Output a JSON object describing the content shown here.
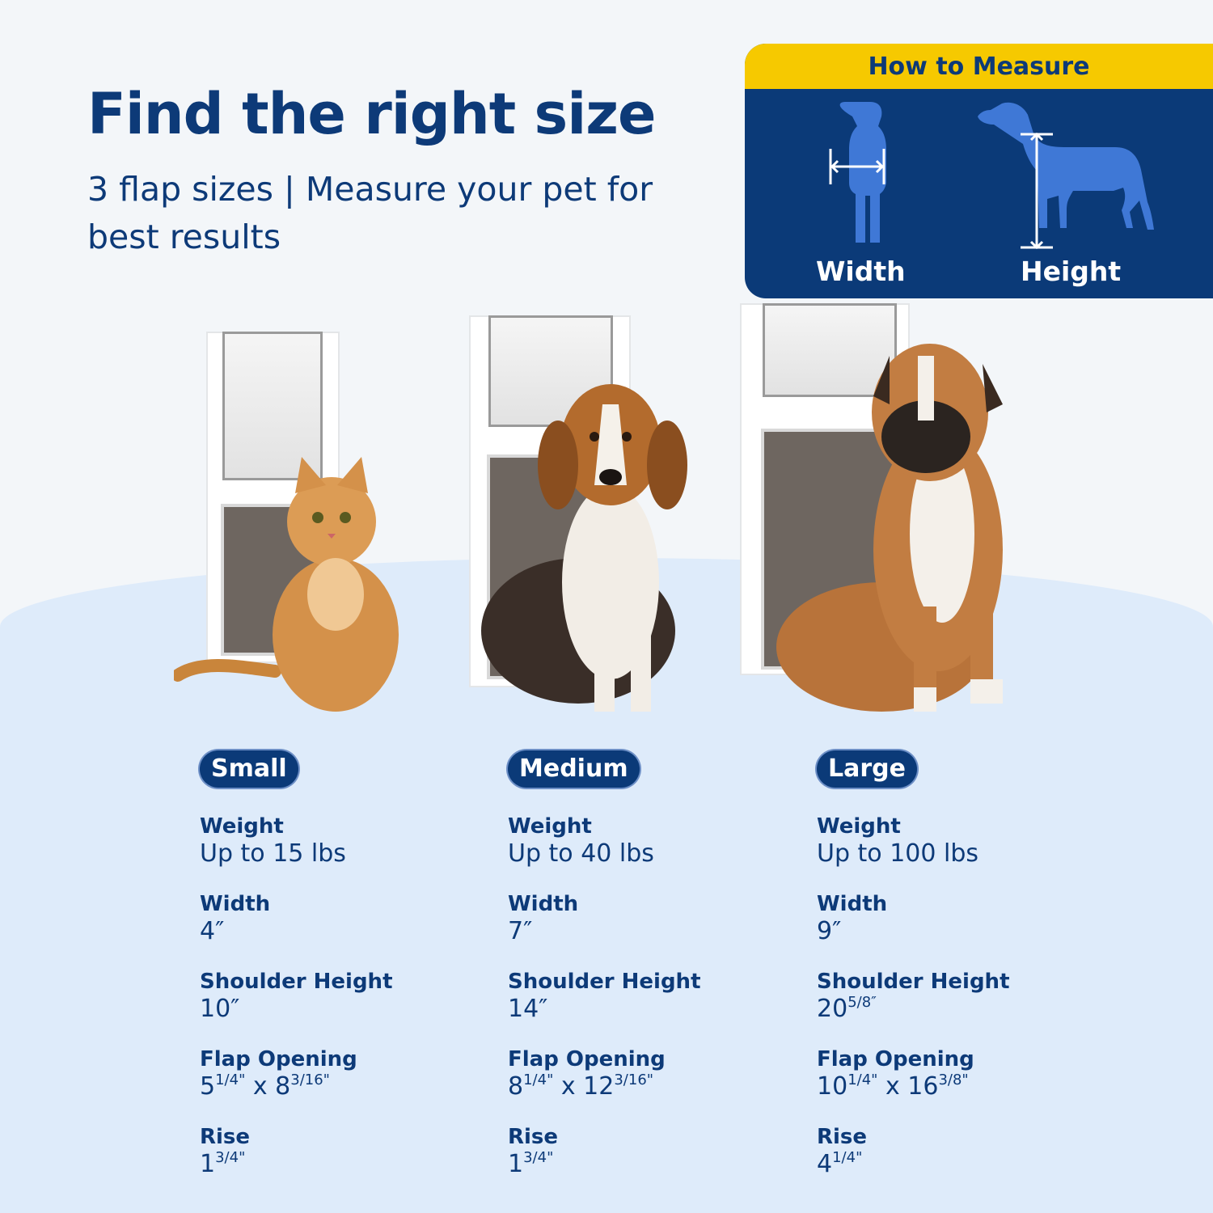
{
  "header": {
    "title": "Find the right size",
    "subtitle": "3 flap sizes | Measure your pet for best results"
  },
  "how_to_measure": {
    "title": "How to Measure",
    "width_label": "Width",
    "height_label": "Height",
    "colors": {
      "header": "#f6c900",
      "panel": "#0b3a78",
      "silhouette": "#3f78d6"
    }
  },
  "colors": {
    "brand_navy": "#0d3a78",
    "background": "#f3f6f9",
    "arc": "#deebfa"
  },
  "sizes": [
    {
      "name": "Small",
      "pet": "cat",
      "specs": [
        {
          "label": "Weight",
          "value": [
            {
              "t": "Up to 15 lbs"
            }
          ]
        },
        {
          "label": "Width",
          "value": [
            {
              "t": "4″"
            }
          ]
        },
        {
          "label": "Shoulder Height",
          "value": [
            {
              "t": "10″"
            }
          ]
        },
        {
          "label": "Flap Opening",
          "value": [
            {
              "t": "5"
            },
            {
              "sup": "1/4\""
            },
            {
              "t": " x 8"
            },
            {
              "sup": "3/16\""
            }
          ]
        },
        {
          "label": "Rise",
          "value": [
            {
              "t": "1"
            },
            {
              "sup": "3/4\""
            }
          ]
        }
      ]
    },
    {
      "name": "Medium",
      "pet": "beagle",
      "specs": [
        {
          "label": "Weight",
          "value": [
            {
              "t": "Up to 40 lbs"
            }
          ]
        },
        {
          "label": "Width",
          "value": [
            {
              "t": "7″"
            }
          ]
        },
        {
          "label": "Shoulder Height",
          "value": [
            {
              "t": "14″"
            }
          ]
        },
        {
          "label": "Flap Opening",
          "value": [
            {
              "t": "8"
            },
            {
              "sup": "1/4\""
            },
            {
              "t": " x 12"
            },
            {
              "sup": "3/16\""
            }
          ]
        },
        {
          "label": "Rise",
          "value": [
            {
              "t": "1"
            },
            {
              "sup": "3/4\""
            }
          ]
        }
      ]
    },
    {
      "name": "Large",
      "pet": "boxer",
      "specs": [
        {
          "label": "Weight",
          "value": [
            {
              "t": "Up to 100 lbs"
            }
          ]
        },
        {
          "label": "Width",
          "value": [
            {
              "t": "9″"
            }
          ]
        },
        {
          "label": "Shoulder Height",
          "value": [
            {
              "t": "20"
            },
            {
              "sup": "5/8″"
            }
          ]
        },
        {
          "label": "Flap Opening",
          "value": [
            {
              "t": "10"
            },
            {
              "sup": "1/4\""
            },
            {
              "t": " x 16"
            },
            {
              "sup": "3/8\""
            }
          ]
        },
        {
          "label": "Rise",
          "value": [
            {
              "t": "4"
            },
            {
              "sup": "1/4\""
            }
          ]
        }
      ]
    }
  ]
}
